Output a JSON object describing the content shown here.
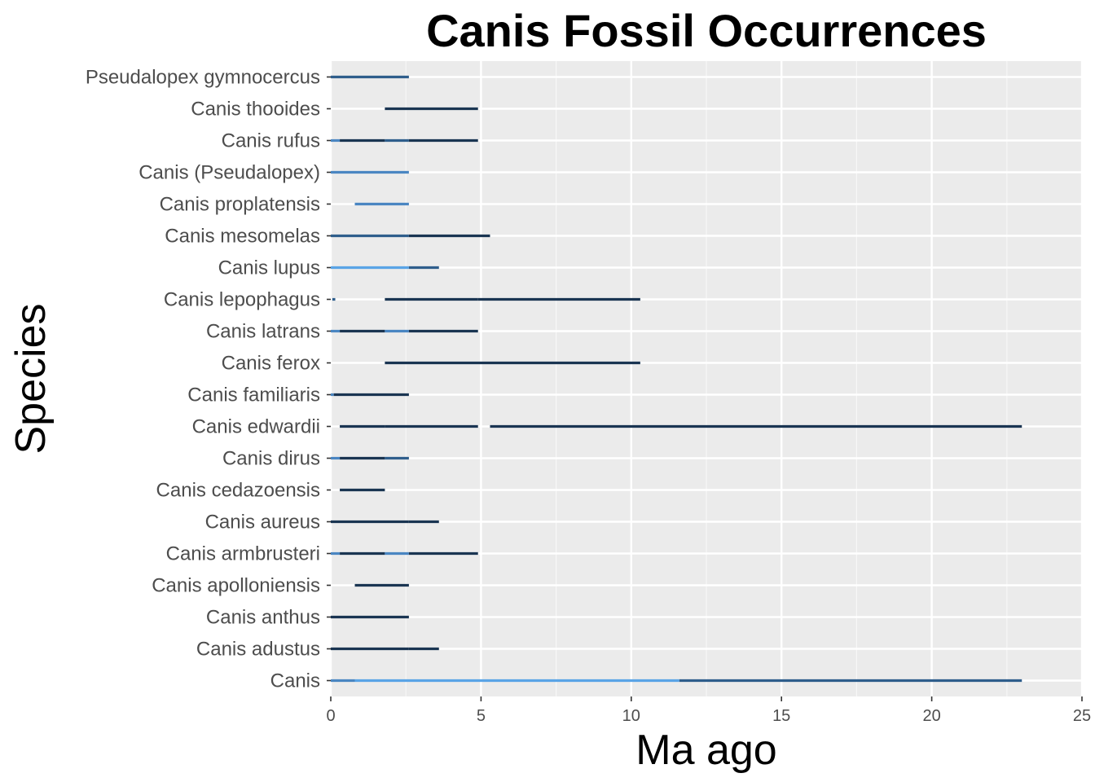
{
  "chart_data": {
    "type": "range",
    "title": "Canis Fossil Occurrences",
    "xlabel": "Ma ago",
    "ylabel": "Species",
    "xlim": [
      0,
      25
    ],
    "xticks": [
      0,
      5,
      10,
      15,
      20,
      25
    ],
    "grid": true,
    "legend": "none",
    "colors": {
      "panel": "#ebebeb",
      "grid_major": "#ffffff",
      "tick_label": "#4d4d4d",
      "title": "#000000",
      "dark": "#1a3552",
      "mid": "#2f5e8c",
      "light": "#4a86c2",
      "lightest": "#5aa4e6"
    },
    "categories": [
      "Canis",
      "Canis adustus",
      "Canis anthus",
      "Canis apolloniensis",
      "Canis armbrusteri",
      "Canis aureus",
      "Canis cedazoensis",
      "Canis dirus",
      "Canis edwardii",
      "Canis familiaris",
      "Canis ferox",
      "Canis latrans",
      "Canis lepophagus",
      "Canis lupus",
      "Canis mesomelas",
      "Canis proplatensis",
      "Canis (Pseudalopex)",
      "Canis rufus",
      "Canis thooides",
      "Pseudalopex gymnocercus"
    ],
    "ranges": [
      {
        "species": "Canis",
        "segments": [
          {
            "from": 0,
            "to": 0.8,
            "shade": "light"
          },
          {
            "from": 0.8,
            "to": 11.6,
            "shade": "lightest"
          },
          {
            "from": 11.6,
            "to": 23.0,
            "shade": "mid"
          }
        ]
      },
      {
        "species": "Canis adustus",
        "segments": [
          {
            "from": 0,
            "to": 2.6,
            "shade": "dark"
          },
          {
            "from": 2.6,
            "to": 3.6,
            "shade": "dark"
          }
        ]
      },
      {
        "species": "Canis anthus",
        "segments": [
          {
            "from": 0,
            "to": 2.6,
            "shade": "dark"
          }
        ]
      },
      {
        "species": "Canis apolloniensis",
        "segments": [
          {
            "from": 0.8,
            "to": 2.6,
            "shade": "dark"
          }
        ]
      },
      {
        "species": "Canis armbrusteri",
        "segments": [
          {
            "from": 0,
            "to": 0.3,
            "shade": "light"
          },
          {
            "from": 0.3,
            "to": 1.8,
            "shade": "dark"
          },
          {
            "from": 1.8,
            "to": 2.6,
            "shade": "light"
          },
          {
            "from": 2.6,
            "to": 4.9,
            "shade": "dark"
          }
        ]
      },
      {
        "species": "Canis aureus",
        "segments": [
          {
            "from": 0,
            "to": 2.6,
            "shade": "dark"
          },
          {
            "from": 2.6,
            "to": 3.6,
            "shade": "dark"
          }
        ]
      },
      {
        "species": "Canis cedazoensis",
        "segments": [
          {
            "from": 0.3,
            "to": 1.8,
            "shade": "dark"
          }
        ]
      },
      {
        "species": "Canis dirus",
        "segments": [
          {
            "from": 0,
            "to": 0.3,
            "shade": "light"
          },
          {
            "from": 0.3,
            "to": 1.8,
            "shade": "dark"
          },
          {
            "from": 1.8,
            "to": 2.6,
            "shade": "mid"
          }
        ]
      },
      {
        "species": "Canis edwardii",
        "segments": [
          {
            "from": 0.3,
            "to": 1.8,
            "shade": "dark"
          },
          {
            "from": 1.8,
            "to": 4.9,
            "shade": "dark"
          },
          {
            "from": 5.3,
            "to": 23.0,
            "shade": "dark"
          }
        ]
      },
      {
        "species": "Canis familiaris",
        "segments": [
          {
            "from": 0,
            "to": 0.1,
            "shade": "light"
          },
          {
            "from": 0.1,
            "to": 2.6,
            "shade": "dark"
          }
        ]
      },
      {
        "species": "Canis ferox",
        "segments": [
          {
            "from": 1.8,
            "to": 10.3,
            "shade": "dark"
          }
        ]
      },
      {
        "species": "Canis latrans",
        "segments": [
          {
            "from": 0,
            "to": 0.3,
            "shade": "light"
          },
          {
            "from": 0.3,
            "to": 1.8,
            "shade": "dark"
          },
          {
            "from": 1.8,
            "to": 2.6,
            "shade": "light"
          },
          {
            "from": 2.6,
            "to": 4.9,
            "shade": "dark"
          }
        ]
      },
      {
        "species": "Canis lepophagus",
        "segments": [
          {
            "from": 0.05,
            "to": 0.15,
            "shade": "mid"
          },
          {
            "from": 1.8,
            "to": 4.9,
            "shade": "dark"
          },
          {
            "from": 4.9,
            "to": 10.3,
            "shade": "dark"
          }
        ]
      },
      {
        "species": "Canis lupus",
        "segments": [
          {
            "from": 0,
            "to": 2.6,
            "shade": "lightest"
          },
          {
            "from": 2.6,
            "to": 3.6,
            "shade": "mid"
          }
        ]
      },
      {
        "species": "Canis mesomelas",
        "segments": [
          {
            "from": 0,
            "to": 2.6,
            "shade": "mid"
          },
          {
            "from": 2.6,
            "to": 5.3,
            "shade": "dark"
          }
        ]
      },
      {
        "species": "Canis proplatensis",
        "segments": [
          {
            "from": 0.8,
            "to": 2.6,
            "shade": "light"
          }
        ]
      },
      {
        "species": "Canis (Pseudalopex)",
        "segments": [
          {
            "from": 0,
            "to": 0.8,
            "shade": "light"
          },
          {
            "from": 0.8,
            "to": 2.6,
            "shade": "light"
          }
        ]
      },
      {
        "species": "Canis rufus",
        "segments": [
          {
            "from": 0,
            "to": 0.3,
            "shade": "light"
          },
          {
            "from": 0.3,
            "to": 1.8,
            "shade": "dark"
          },
          {
            "from": 1.8,
            "to": 2.6,
            "shade": "mid"
          },
          {
            "from": 2.6,
            "to": 4.9,
            "shade": "dark"
          }
        ]
      },
      {
        "species": "Canis thooides",
        "segments": [
          {
            "from": 1.8,
            "to": 4.9,
            "shade": "dark"
          }
        ]
      },
      {
        "species": "Pseudalopex gymnocercus",
        "segments": [
          {
            "from": 0,
            "to": 0.8,
            "shade": "mid"
          },
          {
            "from": 0.8,
            "to": 2.6,
            "shade": "mid"
          }
        ]
      }
    ]
  }
}
